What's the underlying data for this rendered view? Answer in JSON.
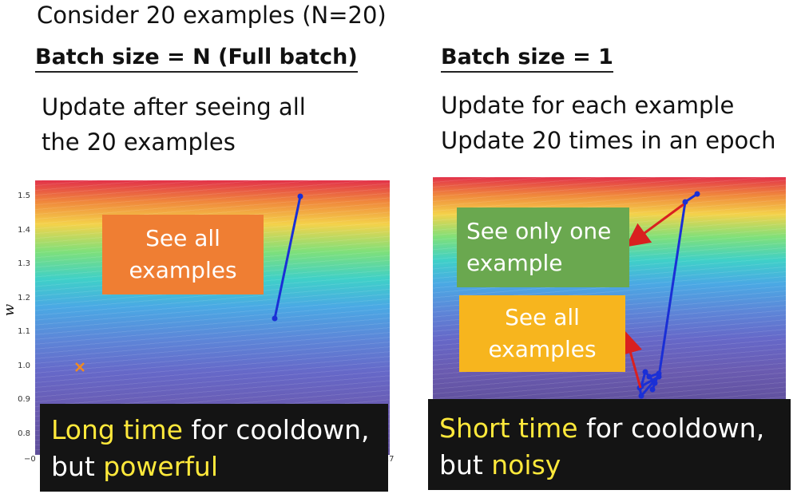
{
  "header": {
    "title": "Consider 20 examples (N=20)"
  },
  "left": {
    "subtitle": "Batch size = N (Full batch)",
    "desc_line1": "Update after seeing all",
    "desc_line2": "the 20 examples",
    "box_line1": "See all",
    "box_line2": "examples",
    "caption_hl1": "Long time",
    "caption_text1": " for cooldown,",
    "caption_text2": "but ",
    "caption_hl2": "powerful",
    "y_label": "w",
    "x_tick_left": "−0",
    "x_tick_right": ".7",
    "y_ticks": [
      "1.5",
      "1.4",
      "1.3",
      "1.2",
      "1.1",
      "1.0",
      "0.9",
      "0.8"
    ]
  },
  "right": {
    "subtitle": "Batch size = 1",
    "desc_line1": "Update for each example",
    "desc_line2": "Update 20 times in an epoch",
    "box1_line1": "See only one",
    "box1_line2": "example",
    "box2_line1": "See all",
    "box2_line2": "examples",
    "caption_hl1": "Short time",
    "caption_text1": " for cooldown,",
    "caption_text2": "but ",
    "caption_hl2": "noisy"
  },
  "colors": {
    "path": "#1a2fd6",
    "arrow": "#d92020",
    "marker": "#f08a20",
    "box_orange": "#ef7e33",
    "box_green": "#6aa84f",
    "box_yellow": "#f7b51e",
    "highlight": "#ffe93b"
  }
}
